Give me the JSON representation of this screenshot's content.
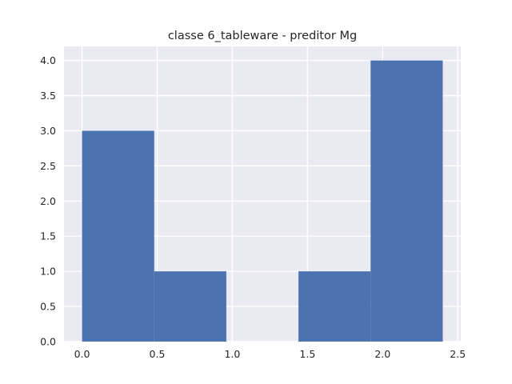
{
  "chart_data": {
    "type": "bar",
    "title": "classe 6_tableware - preditor Mg",
    "xlabel": "",
    "ylabel": "",
    "bins": [
      {
        "x0": 0.0,
        "x1": 0.48,
        "value": 3
      },
      {
        "x0": 0.48,
        "x1": 0.96,
        "value": 1
      },
      {
        "x0": 0.96,
        "x1": 1.44,
        "value": 0
      },
      {
        "x0": 1.44,
        "x1": 1.92,
        "value": 1
      },
      {
        "x0": 1.92,
        "x1": 2.4,
        "value": 4
      }
    ],
    "xlim": [
      -0.12,
      2.52
    ],
    "ylim": [
      0,
      4.2
    ],
    "xticks": [
      "0.0",
      "0.5",
      "1.0",
      "1.5",
      "2.0",
      "2.5"
    ],
    "xtick_values": [
      0.0,
      0.5,
      1.0,
      1.5,
      2.0,
      2.5
    ],
    "yticks": [
      "0.0",
      "0.5",
      "1.0",
      "1.5",
      "2.0",
      "2.5",
      "3.0",
      "3.5",
      "4.0"
    ],
    "ytick_values": [
      0.0,
      0.5,
      1.0,
      1.5,
      2.0,
      2.5,
      3.0,
      3.5,
      4.0
    ],
    "grid": true,
    "colors": {
      "bar": "#4c72b0",
      "background": "#eaeaf2",
      "grid": "#ffffff"
    }
  }
}
